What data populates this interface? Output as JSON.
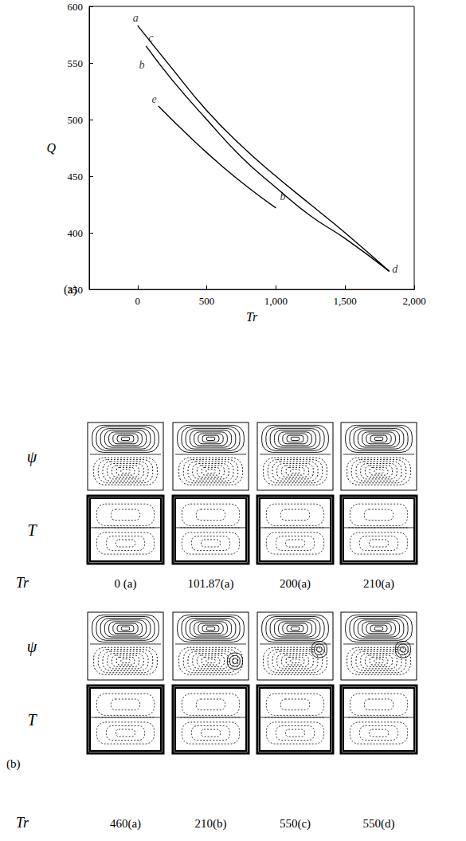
{
  "chart_data": {
    "type": "line",
    "panel_label": "(a)",
    "x_label": "Tr",
    "y_label": "Q",
    "xlim": [
      -350,
      2000
    ],
    "xticks": [
      0,
      500,
      1000,
      1500,
      2000
    ],
    "ylim": [
      350,
      600
    ],
    "yticks": [
      350,
      400,
      450,
      500,
      550,
      600
    ],
    "grid": false,
    "series": [
      {
        "color": "#000000",
        "line_style": "solid",
        "x": [
          0,
          250,
          500,
          750,
          1000,
          1250,
          1500,
          1820
        ],
        "values": [
          583,
          545,
          508,
          477,
          450,
          425,
          400,
          366
        ]
      },
      {
        "color": "#000000",
        "line_style": "solid",
        "x": [
          60,
          250,
          500,
          750,
          1000,
          1250,
          1500,
          1820
        ],
        "values": [
          565,
          535,
          500,
          467,
          440,
          415,
          395,
          366
        ]
      },
      {
        "color": "#000000",
        "line_style": "solid",
        "x": [
          150,
          400,
          600,
          800,
          1000
        ],
        "values": [
          512,
          482,
          460,
          440,
          422
        ]
      }
    ],
    "annotations": [
      {
        "text": "a",
        "x": -15,
        "y": 590
      },
      {
        "text": "c",
        "x": 95,
        "y": 572
      },
      {
        "text": "b",
        "x": 30,
        "y": 548
      },
      {
        "text": "e",
        "x": 120,
        "y": 518
      },
      {
        "text": "b",
        "x": 1050,
        "y": 432
      },
      {
        "text": "d",
        "x": 1860,
        "y": 368
      }
    ]
  },
  "panel_b": {
    "label": "(b)",
    "row_labels": [
      "ψ",
      "T"
    ],
    "x_label": "Tr",
    "groups": [
      {
        "columns": [
          "0 (a)",
          "101.87(a)",
          "200(a)",
          "210(a)"
        ]
      },
      {
        "columns": [
          "460(a)",
          "210(b)",
          "550(c)",
          "550(d)"
        ]
      }
    ]
  }
}
